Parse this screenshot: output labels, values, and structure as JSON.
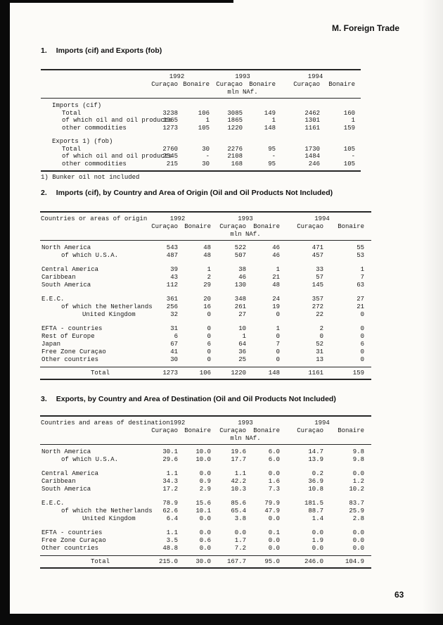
{
  "page": {
    "header_title": "M. Foreign Trade",
    "page_number": "63"
  },
  "columns": {
    "years": [
      "1992",
      "1993",
      "1994"
    ],
    "territories": [
      "Curaçao",
      "Bonaire"
    ],
    "unit": "mln NAf."
  },
  "section1": {
    "number": "1.",
    "title": "Imports (cif) and Exports (fob)",
    "footnote": "1) Bunker oil not included",
    "table": {
      "label_header": "",
      "rows": [
        {
          "type": "group",
          "indent": 0,
          "label": "Imports (cif)"
        },
        {
          "type": "data",
          "indent": 1,
          "label": "Total",
          "values": [
            "3238",
            "106",
            "3085",
            "149",
            "2462",
            "160"
          ]
        },
        {
          "type": "data",
          "indent": 1,
          "label": "of which oil and oil products",
          "values": [
            "1965",
            "1",
            "1865",
            "1",
            "1301",
            "1"
          ]
        },
        {
          "type": "data",
          "indent": 1,
          "label": "other commodities",
          "values": [
            "1273",
            "105",
            "1220",
            "148",
            "1161",
            "159"
          ]
        },
        {
          "type": "blank"
        },
        {
          "type": "group",
          "indent": 0,
          "label": "Exports 1) (fob)"
        },
        {
          "type": "data",
          "indent": 1,
          "label": "Total",
          "values": [
            "2760",
            "30",
            "2276",
            "95",
            "1730",
            "105"
          ]
        },
        {
          "type": "data",
          "indent": 1,
          "label": "of which oil and oil products",
          "values": [
            "2545",
            "-",
            "2108",
            "-",
            "1484",
            "-"
          ]
        },
        {
          "type": "data",
          "indent": 1,
          "label": "other commodities",
          "values": [
            "215",
            "30",
            "168",
            "95",
            "246",
            "105"
          ]
        }
      ]
    }
  },
  "section2": {
    "number": "2.",
    "title": "Imports (cif), by Country and Area of Origin (Oil and Oil Products Not Included)",
    "table": {
      "label_header": "Countries or areas of origin",
      "rows": [
        {
          "type": "data",
          "indent": 0,
          "label": "North America",
          "values": [
            "543",
            "48",
            "522",
            "46",
            "471",
            "55"
          ]
        },
        {
          "type": "data",
          "indent": 1,
          "label": "of which U.S.A.",
          "values": [
            "487",
            "48",
            "507",
            "46",
            "457",
            "53"
          ]
        },
        {
          "type": "blank"
        },
        {
          "type": "data",
          "indent": 0,
          "label": "Central America",
          "values": [
            "39",
            "1",
            "38",
            "1",
            "33",
            "1"
          ]
        },
        {
          "type": "data",
          "indent": 0,
          "label": "Caribbean",
          "values": [
            "43",
            "2",
            "46",
            "21",
            "57",
            "7"
          ]
        },
        {
          "type": "data",
          "indent": 0,
          "label": "South America",
          "values": [
            "112",
            "29",
            "130",
            "48",
            "145",
            "63"
          ]
        },
        {
          "type": "blank"
        },
        {
          "type": "data",
          "indent": 0,
          "label": "E.E.C.",
          "values": [
            "361",
            "20",
            "348",
            "24",
            "357",
            "27"
          ]
        },
        {
          "type": "data",
          "indent": 1,
          "label": "of which the Netherlands",
          "values": [
            "256",
            "16",
            "261",
            "19",
            "272",
            "21"
          ]
        },
        {
          "type": "data",
          "indent": 2,
          "label": "United Kingdom",
          "values": [
            "32",
            "0",
            "27",
            "0",
            "22",
            "0"
          ]
        },
        {
          "type": "blank"
        },
        {
          "type": "data",
          "indent": 0,
          "label": "EFTA - countries",
          "values": [
            "31",
            "0",
            "10",
            "1",
            "2",
            "0"
          ]
        },
        {
          "type": "data",
          "indent": 0,
          "label": "Rest of Europe",
          "values": [
            "6",
            "0",
            "1",
            "0",
            "0",
            "0"
          ]
        },
        {
          "type": "data",
          "indent": 0,
          "label": "Japan",
          "values": [
            "67",
            "6",
            "64",
            "7",
            "52",
            "6"
          ]
        },
        {
          "type": "data",
          "indent": 0,
          "label": "Free Zone Curaçao",
          "values": [
            "41",
            "0",
            "36",
            "0",
            "31",
            "0"
          ]
        },
        {
          "type": "data",
          "indent": 0,
          "label": "Other countries",
          "values": [
            "30",
            "0",
            "25",
            "0",
            "13",
            "0"
          ]
        }
      ],
      "total": {
        "label": "Total",
        "values": [
          "1273",
          "106",
          "1220",
          "148",
          "1161",
          "159"
        ]
      }
    }
  },
  "section3": {
    "number": "3.",
    "title": "Exports, by Country and Area of Destination (Oil and Oil Products Not Included)",
    "table": {
      "label_header": "Countries and areas of destination",
      "rows": [
        {
          "type": "data",
          "indent": 0,
          "label": "North America",
          "values": [
            "30.1",
            "10.0",
            "19.6",
            "6.0",
            "14.7",
            "9.8"
          ]
        },
        {
          "type": "data",
          "indent": 1,
          "label": "of which U.S.A.",
          "values": [
            "29.6",
            "10.0",
            "17.7",
            "6.0",
            "13.9",
            "9.8"
          ]
        },
        {
          "type": "blank"
        },
        {
          "type": "data",
          "indent": 0,
          "label": "Central America",
          "values": [
            "1.1",
            "0.0",
            "1.1",
            "0.0",
            "0.2",
            "0.0"
          ]
        },
        {
          "type": "data",
          "indent": 0,
          "label": "Caribbean",
          "values": [
            "34.3",
            "0.9",
            "42.2",
            "1.6",
            "36.9",
            "1.2"
          ]
        },
        {
          "type": "data",
          "indent": 0,
          "label": "South America",
          "values": [
            "17.2",
            "2.9",
            "10.3",
            "7.3",
            "10.8",
            "10.2"
          ]
        },
        {
          "type": "blank"
        },
        {
          "type": "data",
          "indent": 0,
          "label": "E.E.C.",
          "values": [
            "78.9",
            "15.6",
            "85.6",
            "79.9",
            "181.5",
            "83.7"
          ]
        },
        {
          "type": "data",
          "indent": 1,
          "label": "of which the Netherlands",
          "values": [
            "62.6",
            "10.1",
            "65.4",
            "47.9",
            "88.7",
            "25.9"
          ]
        },
        {
          "type": "data",
          "indent": 2,
          "label": "United Kingdom",
          "values": [
            "6.4",
            "0.0",
            "3.8",
            "0.0",
            "1.4",
            "2.8"
          ]
        },
        {
          "type": "blank"
        },
        {
          "type": "data",
          "indent": 0,
          "label": "EFTA - countries",
          "values": [
            "1.1",
            "0.0",
            "0.0",
            "0.1",
            "0.0",
            "0.0"
          ]
        },
        {
          "type": "data",
          "indent": 0,
          "label": "Free Zone Curaçao",
          "values": [
            "3.5",
            "0.6",
            "1.7",
            "0.0",
            "1.9",
            "0.0"
          ]
        },
        {
          "type": "data",
          "indent": 0,
          "label": "Other countries",
          "values": [
            "48.8",
            "0.0",
            "7.2",
            "0.0",
            "0.0",
            "0.0"
          ]
        }
      ],
      "total": {
        "label": "Total",
        "values": [
          "215.0",
          "30.0",
          "167.7",
          "95.0",
          "246.0",
          "104.9"
        ]
      }
    }
  }
}
